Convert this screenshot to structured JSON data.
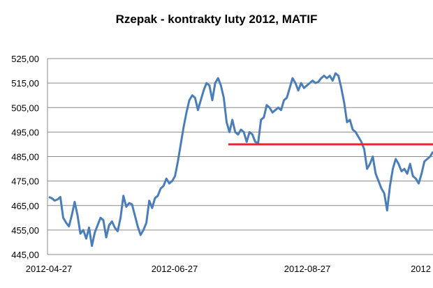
{
  "chart_data": {
    "type": "line",
    "title": "Rzepak - kontrakty luty 2012, MATIF",
    "xlabel": "",
    "ylabel": "",
    "ylim": [
      445,
      525
    ],
    "yticks": [
      "525,00",
      "515,00",
      "505,00",
      "495,00",
      "485,00",
      "475,00",
      "465,00",
      "455,00",
      "445,00"
    ],
    "ytick_values": [
      525,
      515,
      505,
      495,
      485,
      475,
      465,
      455,
      445
    ],
    "xticks": [
      "2012-04-27",
      "2012-06-27",
      "2012-08-27",
      "2012"
    ],
    "grid": "horizontal",
    "series": [
      {
        "color": "#4a7ebb",
        "values": [
          468.5,
          468,
          467,
          467.5,
          468.5,
          460,
          458,
          456.5,
          461,
          466.5,
          461,
          453.5,
          455,
          451.5,
          456,
          448.5,
          454,
          457,
          460,
          459,
          452,
          457,
          458.5,
          456,
          454.5,
          460,
          469,
          464.5,
          466,
          465.5,
          461,
          456.5,
          453,
          455,
          458,
          467,
          464,
          468,
          469,
          472,
          473,
          476,
          474,
          475,
          477,
          483,
          490,
          497,
          503,
          508,
          510,
          509,
          504,
          508,
          512,
          515,
          514,
          508,
          515,
          517,
          514,
          509,
          499,
          495,
          500,
          495,
          494,
          496,
          495,
          491,
          495,
          494,
          491,
          490.5,
          500,
          501,
          506,
          505,
          503,
          504,
          505,
          504,
          508,
          509,
          513,
          517,
          515,
          512,
          515,
          513,
          514,
          515,
          516,
          515,
          515.5,
          517,
          518,
          517,
          518,
          516,
          519,
          518,
          513,
          507,
          499,
          500,
          496,
          495,
          493,
          491,
          488,
          480,
          482,
          485,
          478,
          475,
          472,
          470,
          463,
          473,
          480,
          484,
          482,
          479,
          480,
          478,
          482,
          477,
          476,
          474,
          478,
          483,
          484,
          485,
          487
        ]
      }
    ],
    "reference_line": {
      "value": 490,
      "color": "#e8232b"
    }
  }
}
